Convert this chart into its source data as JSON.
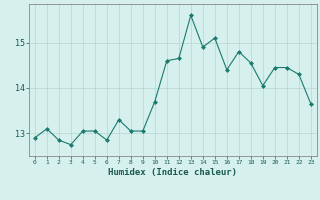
{
  "x": [
    0,
    1,
    2,
    3,
    4,
    5,
    6,
    7,
    8,
    9,
    10,
    11,
    12,
    13,
    14,
    15,
    16,
    17,
    18,
    19,
    20,
    21,
    22,
    23
  ],
  "y": [
    12.9,
    13.1,
    12.85,
    12.75,
    13.05,
    13.05,
    12.85,
    13.3,
    13.05,
    13.05,
    13.7,
    14.6,
    14.65,
    15.6,
    14.9,
    15.1,
    14.4,
    14.8,
    14.55,
    14.05,
    14.45,
    14.45,
    14.3,
    13.65
  ],
  "title": "",
  "xlabel": "Humidex (Indice chaleur)",
  "ylabel": "",
  "xlim": [
    -0.5,
    23.5
  ],
  "ylim": [
    12.5,
    15.85
  ],
  "yticks": [
    13,
    14,
    15
  ],
  "xticks": [
    0,
    1,
    2,
    3,
    4,
    5,
    6,
    7,
    8,
    9,
    10,
    11,
    12,
    13,
    14,
    15,
    16,
    17,
    18,
    19,
    20,
    21,
    22,
    23
  ],
  "line_color": "#1a7a6e",
  "marker_color": "#1a7a6e",
  "bg_color": "#d6f0ee",
  "grid_color": "#b8d4d0",
  "axis_color": "#888888",
  "label_color": "#1a5a50",
  "tick_color": "#1a5a50"
}
